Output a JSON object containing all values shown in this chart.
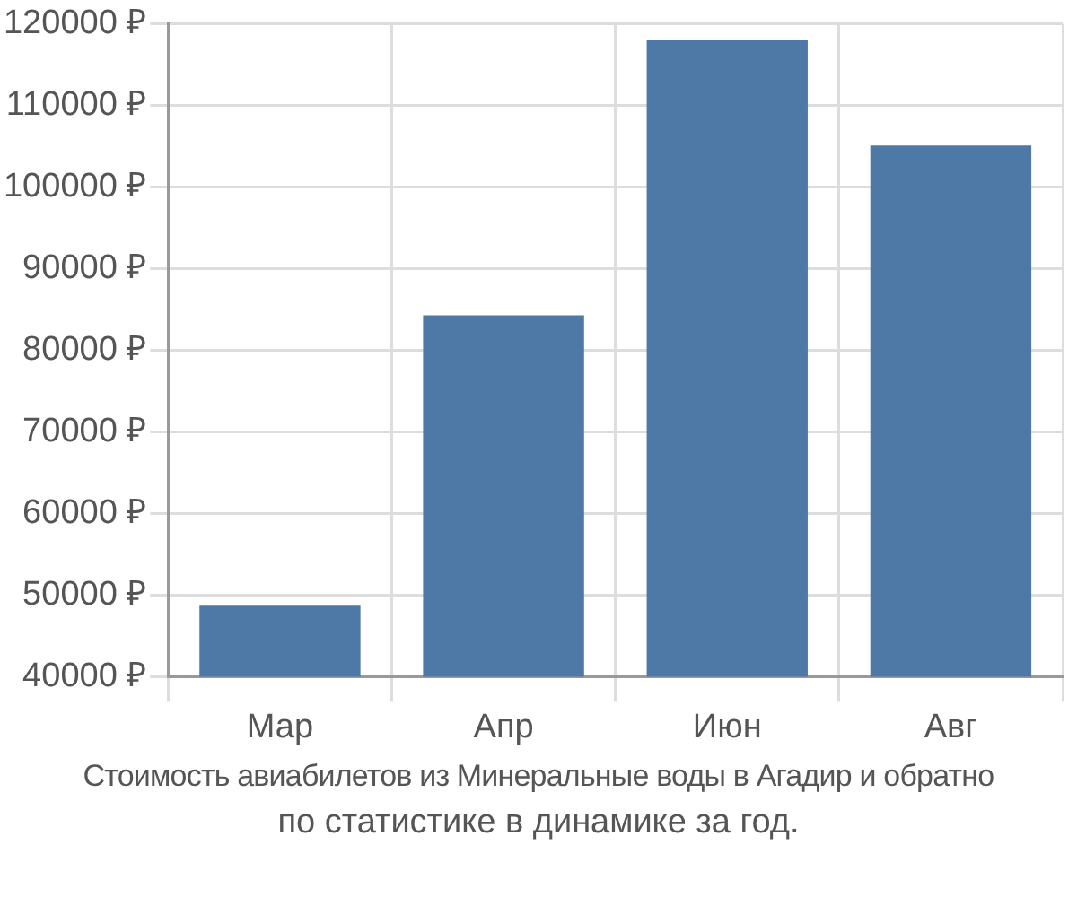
{
  "chart_data": {
    "type": "bar",
    "categories": [
      "Мар",
      "Апр",
      "Июн",
      "Авг"
    ],
    "values": [
      48700,
      84300,
      118000,
      105100
    ],
    "color": "#4e79a7",
    "ylim": [
      40000,
      120000
    ],
    "yticks": [
      {
        "value": 40000,
        "label": "40000 ₽"
      },
      {
        "value": 50000,
        "label": "50000 ₽"
      },
      {
        "value": 60000,
        "label": "60000 ₽"
      },
      {
        "value": 70000,
        "label": "70000 ₽"
      },
      {
        "value": 80000,
        "label": "80000 ₽"
      },
      {
        "value": 90000,
        "label": "90000 ₽"
      },
      {
        "value": 100000,
        "label": "100000 ₽"
      },
      {
        "value": 110000,
        "label": "110000 ₽"
      },
      {
        "value": 120000,
        "label": "120000 ₽"
      }
    ],
    "grid": true,
    "annotations": [
      "Стоимость авиабилетов из Минеральные воды в Агадир и обратно",
      "по статистике в динамике за год."
    ]
  }
}
